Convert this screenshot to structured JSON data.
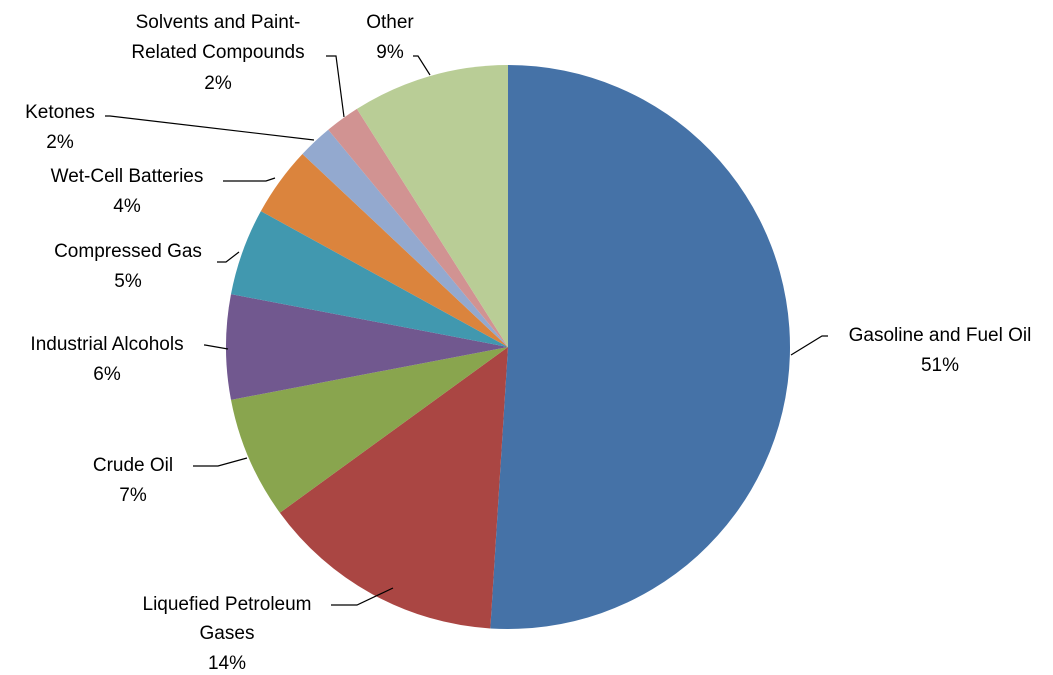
{
  "chart_data": {
    "type": "pie",
    "title": "",
    "start_angle_deg": 0,
    "direction": "clockwise",
    "legend": "none",
    "data_labels": "category name and percentage, outside with leader lines",
    "slices": [
      {
        "label": "Gasoline and Fuel Oil",
        "value": 51,
        "percent_label": "51%",
        "color": "#4572A7"
      },
      {
        "label": "Liquefied Petroleum Gases",
        "value": 14,
        "percent_label": "14%",
        "color": "#AA4643"
      },
      {
        "label": "Crude Oil",
        "value": 7,
        "percent_label": "7%",
        "color": "#89A54E"
      },
      {
        "label": "Industrial Alcohols",
        "value": 6,
        "percent_label": "6%",
        "color": "#71588F"
      },
      {
        "label": "Compressed Gas",
        "value": 5,
        "percent_label": "5%",
        "color": "#4198AF"
      },
      {
        "label": "Wet-Cell Batteries",
        "value": 4,
        "percent_label": "4%",
        "color": "#DB843D"
      },
      {
        "label": "Ketones",
        "value": 2,
        "percent_label": "2%",
        "color": "#93A9CF"
      },
      {
        "label": "Solvents and Paint-Related Compounds",
        "value": 2,
        "percent_label": "2%",
        "color": "#D19392"
      },
      {
        "label": "Other",
        "value": 9,
        "percent_label": "9%",
        "color": "#B9CD96"
      }
    ]
  }
}
